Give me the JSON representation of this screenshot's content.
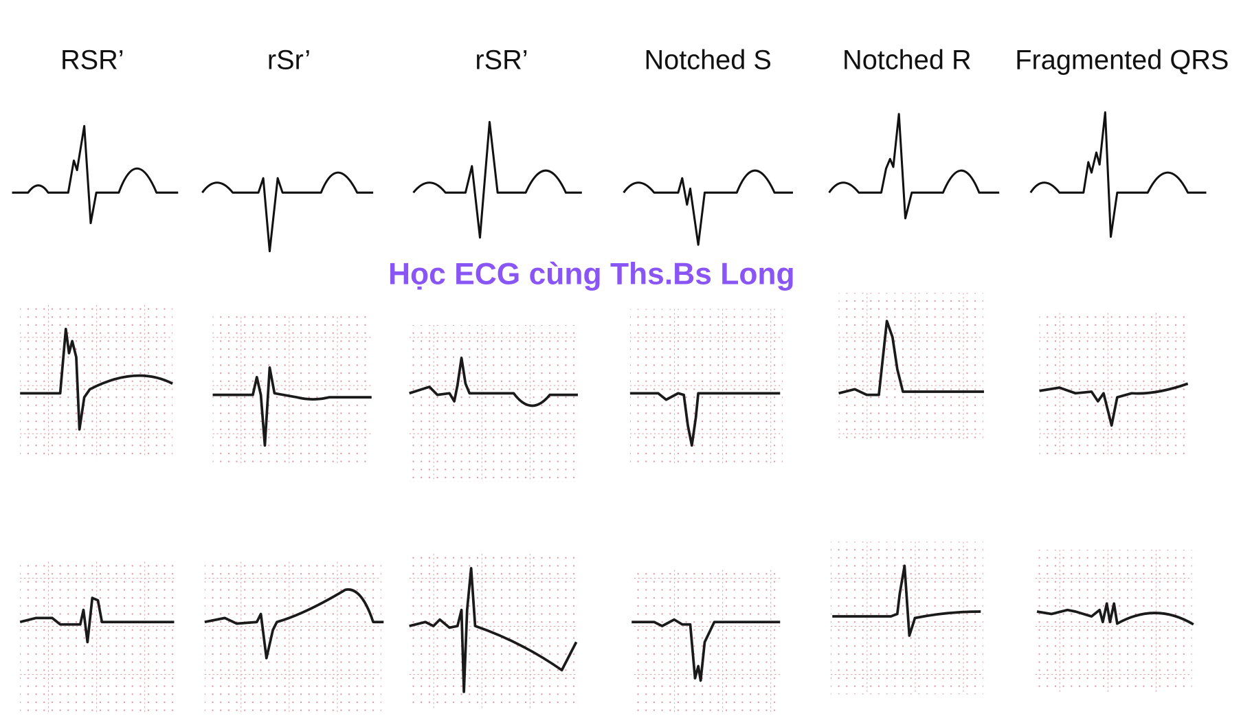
{
  "labels": [
    "RSR’",
    "rSr’",
    "rSR’",
    "Notched S",
    "Notched R",
    "Fragmented QRS"
  ],
  "watermark": "Học ECG cùng Ths.Bs Long"
}
